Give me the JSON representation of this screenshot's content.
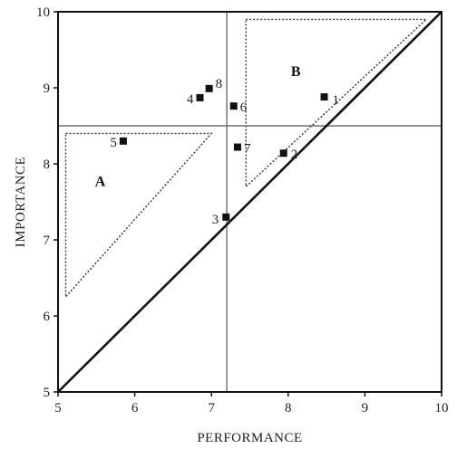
{
  "chart_data": {
    "type": "scatter",
    "title": "",
    "xlabel": "PERFORMANCE",
    "ylabel": "IMPORTANCE",
    "xlim": [
      5,
      10
    ],
    "ylim": [
      5,
      10
    ],
    "x_ticks": [
      5,
      6,
      7,
      8,
      9,
      10
    ],
    "y_ticks": [
      5,
      6,
      7,
      8,
      9,
      10
    ],
    "grid": false,
    "reference_lines": {
      "vertical_x": 7.2,
      "horizontal_y": 8.5,
      "diagonal": {
        "from": [
          5,
          5
        ],
        "to": [
          10,
          10
        ]
      }
    },
    "regions": [
      {
        "label": "A",
        "label_at": [
          5.55,
          7.75
        ],
        "vertices": [
          [
            5.1,
            8.4
          ],
          [
            7.0,
            8.4
          ],
          [
            5.1,
            6.25
          ]
        ]
      },
      {
        "label": "B",
        "label_at": [
          8.1,
          9.2
        ],
        "vertices": [
          [
            7.45,
            9.9
          ],
          [
            9.8,
            9.9
          ],
          [
            7.45,
            7.7
          ]
        ]
      }
    ],
    "points": [
      {
        "label": "1",
        "x": 8.47,
        "y": 8.88
      },
      {
        "label": "2",
        "x": 7.94,
        "y": 8.14
      },
      {
        "label": "3",
        "x": 7.19,
        "y": 7.3
      },
      {
        "label": "4",
        "x": 6.85,
        "y": 8.87
      },
      {
        "label": "5",
        "x": 5.85,
        "y": 8.3
      },
      {
        "label": "6",
        "x": 7.29,
        "y": 8.76
      },
      {
        "label": "7",
        "x": 7.34,
        "y": 8.22
      },
      {
        "label": "8",
        "x": 6.97,
        "y": 8.99
      }
    ]
  }
}
